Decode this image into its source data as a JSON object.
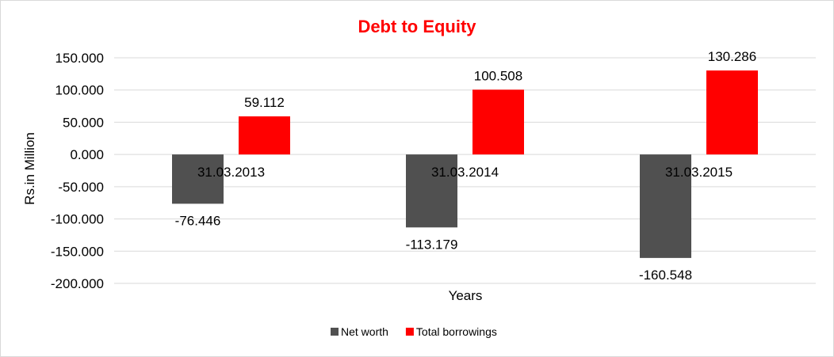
{
  "chart_data": {
    "type": "bar",
    "title": "Debt to Equity",
    "xlabel": "Years",
    "ylabel": "Rs.in Million",
    "categories": [
      "31.03.2013",
      "31.03.2014",
      "31.03.2015"
    ],
    "series": [
      {
        "name": "Net worth",
        "color": "#505050",
        "values": [
          -76.446,
          -113.179,
          -160.548
        ],
        "labels": [
          "-76.446",
          "-113.179",
          "-160.548"
        ]
      },
      {
        "name": "Total borrowings",
        "color": "#ff0000",
        "values": [
          59.112,
          100.508,
          130.286
        ],
        "labels": [
          "59.112",
          "100.508",
          "130.286"
        ]
      }
    ],
    "ylim": [
      -200,
      150
    ],
    "yticks": [
      150,
      100,
      50,
      0,
      -50,
      -100,
      -150,
      -200
    ],
    "ytick_labels": [
      "150.000",
      "100.000",
      "50.000",
      "0.000",
      "-50.000",
      "-100.000",
      "-150.000",
      "-200.000"
    ],
    "grid": true,
    "legend_position": "bottom",
    "title_color": "#ff0000"
  }
}
